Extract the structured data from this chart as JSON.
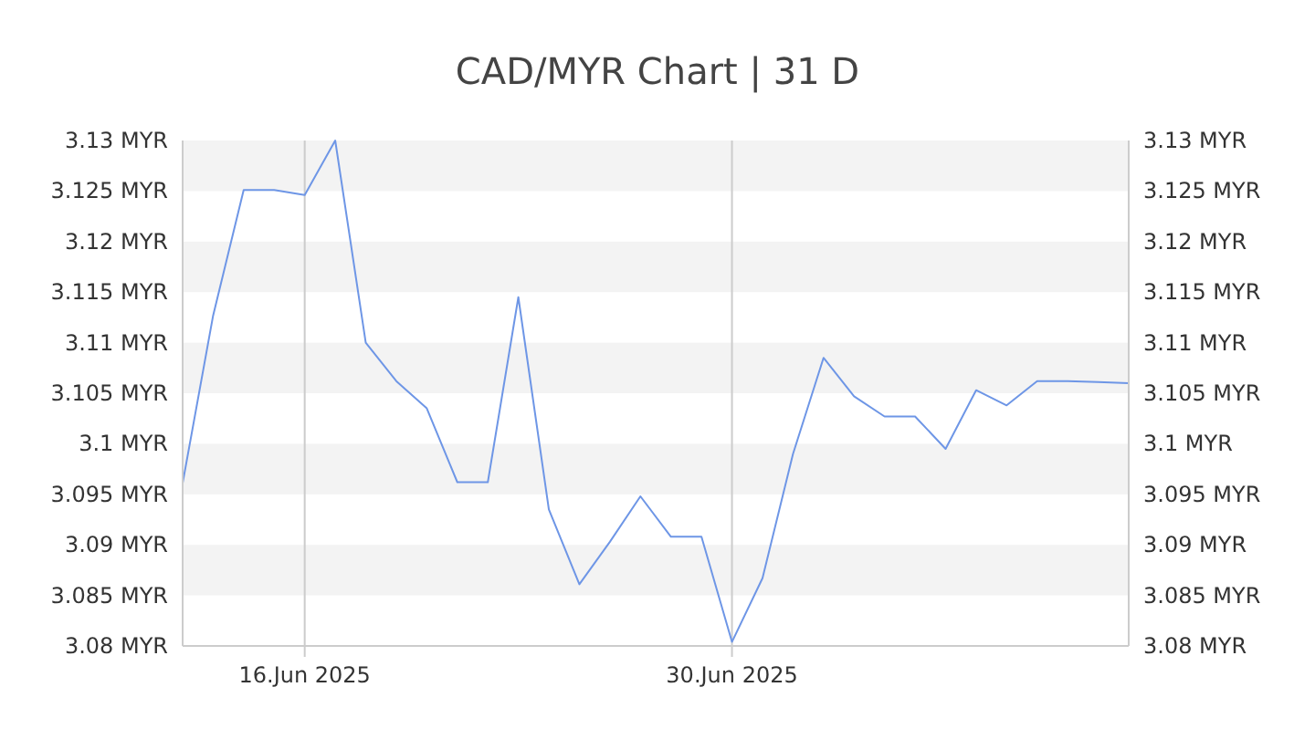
{
  "chart_data": {
    "type": "line",
    "title": "CAD/MYR Chart | 31 D",
    "x": [
      "2025-06-12",
      "2025-06-13",
      "2025-06-14",
      "2025-06-15",
      "2025-06-16",
      "2025-06-17",
      "2025-06-18",
      "2025-06-19",
      "2025-06-20",
      "2025-06-21",
      "2025-06-22",
      "2025-06-23",
      "2025-06-24",
      "2025-06-25",
      "2025-06-26",
      "2025-06-27",
      "2025-06-28",
      "2025-06-29",
      "2025-06-30",
      "2025-07-01",
      "2025-07-02",
      "2025-07-03",
      "2025-07-04",
      "2025-07-05",
      "2025-07-06",
      "2025-07-07",
      "2025-07-08",
      "2025-07-09",
      "2025-07-10",
      "2025-07-11",
      "2025-07-12",
      "2025-07-13"
    ],
    "series": [
      {
        "color": "#6e96e6",
        "values": [
          3.0961,
          3.1127,
          3.1251,
          3.1251,
          3.1246,
          3.13,
          3.11,
          3.1062,
          3.1035,
          3.0962,
          3.0962,
          3.1145,
          3.0935,
          3.0861,
          3.0903,
          3.0948,
          3.0908,
          3.0908,
          3.0804,
          3.0867,
          3.099,
          3.1085,
          3.1047,
          3.1027,
          3.1027,
          3.0995,
          3.1053,
          3.1038,
          3.1062,
          3.1062,
          3.1061,
          3.106
        ]
      }
    ],
    "xlim": [
      "2025-06-12",
      "2025-07-13"
    ],
    "xticks": [
      {
        "value": "2025-06-16",
        "label": "16.Jun 2025"
      },
      {
        "value": "2025-06-30",
        "label": "30.Jun 2025"
      }
    ],
    "ylim": [
      3.08,
      3.13
    ],
    "yticks": [
      {
        "value": 3.08,
        "label": "3.08 MYR"
      },
      {
        "value": 3.085,
        "label": "3.085 MYR"
      },
      {
        "value": 3.09,
        "label": "3.09 MYR"
      },
      {
        "value": 3.095,
        "label": "3.095 MYR"
      },
      {
        "value": 3.1,
        "label": "3.1 MYR"
      },
      {
        "value": 3.105,
        "label": "3.105 MYR"
      },
      {
        "value": 3.11,
        "label": "3.11 MYR"
      },
      {
        "value": 3.115,
        "label": "3.115 MYR"
      },
      {
        "value": 3.12,
        "label": "3.12 MYR"
      },
      {
        "value": 3.125,
        "label": "3.125 MYR"
      },
      {
        "value": 3.13,
        "label": "3.13 MYR"
      }
    ],
    "y2lim": [
      3.08,
      3.13
    ],
    "y2ticks": [
      {
        "value": 3.08,
        "label": "3.08 MYR"
      },
      {
        "value": 3.085,
        "label": "3.085 MYR"
      },
      {
        "value": 3.09,
        "label": "3.09 MYR"
      },
      {
        "value": 3.095,
        "label": "3.095 MYR"
      },
      {
        "value": 3.1,
        "label": "3.1 MYR"
      },
      {
        "value": 3.105,
        "label": "3.105 MYR"
      },
      {
        "value": 3.11,
        "label": "3.11 MYR"
      },
      {
        "value": 3.115,
        "label": "3.115 MYR"
      },
      {
        "value": 3.12,
        "label": "3.12 MYR"
      },
      {
        "value": 3.125,
        "label": "3.125 MYR"
      },
      {
        "value": 3.13,
        "label": "3.13 MYR"
      }
    ],
    "grid": true,
    "marker": "none",
    "line_style": "solid"
  }
}
